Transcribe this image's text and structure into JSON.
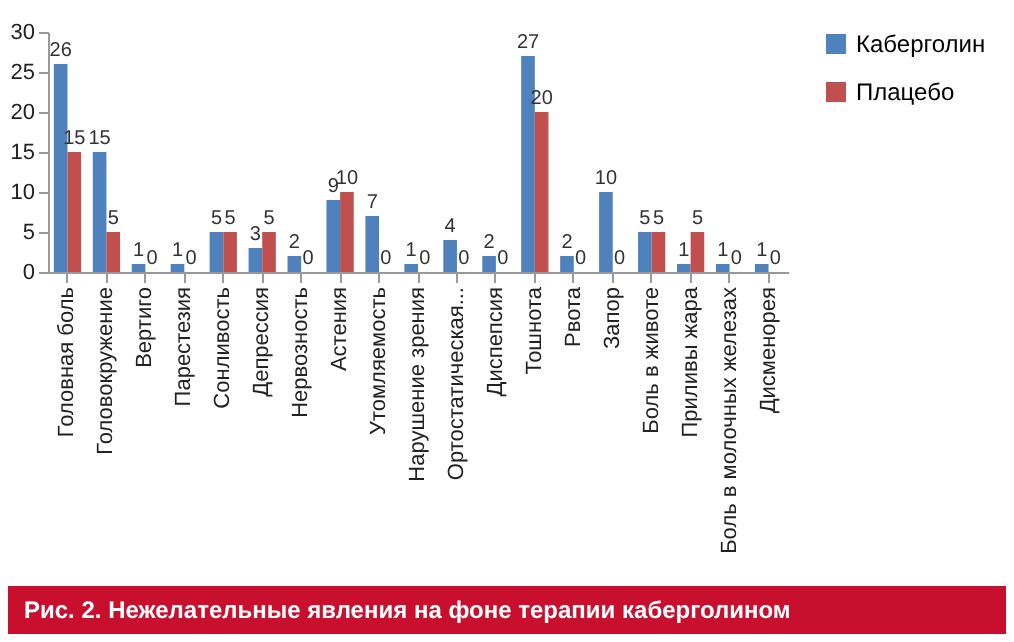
{
  "chart_data": {
    "type": "bar",
    "categories": [
      "Головная боль",
      "Головокружение",
      "Вертиго",
      "Парестезия",
      "Сонливость",
      "Депрессия",
      "Нервозность",
      "Астения",
      "Утомляемость",
      "Нарушение зрения",
      "Ортостатическая...",
      "Диспепсия",
      "Тошнота",
      "Рвота",
      "Запор",
      "Боль в животе",
      "Приливы жара",
      "Боль в молочных железах",
      "Дисменорея"
    ],
    "series": [
      {
        "name": "Каберголин",
        "color": "#4f81bd",
        "values": [
          26,
          15,
          1,
          1,
          5,
          3,
          2,
          9,
          7,
          1,
          4,
          2,
          27,
          2,
          10,
          5,
          1,
          1,
          1
        ]
      },
      {
        "name": "Плацебо",
        "color": "#c0504d",
        "values": [
          15,
          5,
          0,
          0,
          5,
          5,
          0,
          10,
          0,
          0,
          0,
          0,
          20,
          0,
          0,
          5,
          5,
          0,
          0
        ]
      }
    ],
    "ylim": [
      0,
      30
    ],
    "yticks": [
      0,
      5,
      10,
      15,
      20,
      25,
      30
    ],
    "grid": false,
    "legend": "right",
    "data_labels": true,
    "annotations": [
      "Рис. 2. Нежелательные явления на фоне терапии каберголином"
    ]
  }
}
